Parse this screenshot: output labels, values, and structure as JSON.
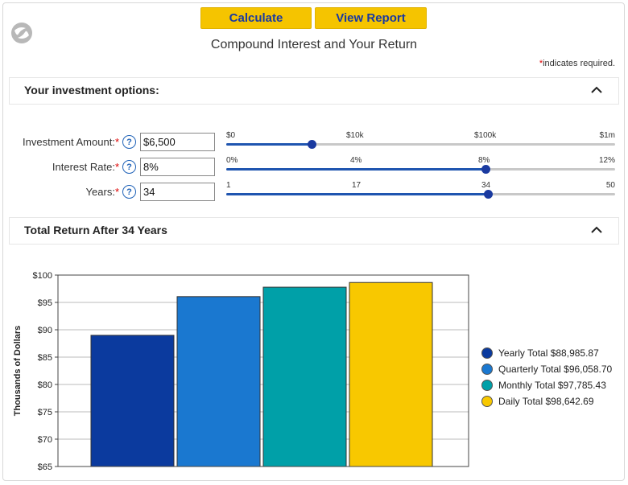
{
  "buttons": {
    "calculate": "Calculate",
    "view_report": "View Report"
  },
  "title": "Compound Interest and Your Return",
  "required_note": {
    "star": "*",
    "text": "indicates required."
  },
  "sections": {
    "options": "Your investment options:",
    "total": "Total Return After 34 Years"
  },
  "fields": {
    "amount": {
      "label": "Investment Amount:",
      "star": "*",
      "value": "$6,500",
      "help": "?"
    },
    "rate": {
      "label": "Interest Rate:",
      "star": "*",
      "value": "8%",
      "help": "?"
    },
    "years": {
      "label": "Years:",
      "star": "*",
      "value": "34",
      "help": "?"
    }
  },
  "sliders": {
    "amount": {
      "ticks": [
        "$0",
        "$10k",
        "$100k",
        "$1m"
      ],
      "level": 0.22
    },
    "rate": {
      "ticks": [
        "0%",
        "4%",
        "8%",
        "12%"
      ],
      "level": 0.667
    },
    "years": {
      "ticks": [
        "1",
        "17",
        "34",
        "50"
      ],
      "level": 0.673
    }
  },
  "chart_data": {
    "type": "bar",
    "title": "",
    "xlabel": "",
    "ylabel": "Thousands of Dollars",
    "ylim": [
      65,
      100
    ],
    "yticks": [
      65,
      70,
      75,
      80,
      85,
      90,
      95,
      100
    ],
    "ytick_labels": [
      "$65",
      "$70",
      "$75",
      "$80",
      "$85",
      "$90",
      "$95",
      "$100"
    ],
    "categories": [
      "Yearly",
      "Quarterly",
      "Monthly",
      "Daily"
    ],
    "values": [
      88.98587,
      96.0587,
      97.78543,
      98.64269
    ],
    "colors": [
      "#0b3a9e",
      "#1a78d0",
      "#00a0a8",
      "#f8c800"
    ],
    "legend": [
      "Yearly Total $88,985.87",
      "Quarterly Total $96,058.70",
      "Monthly Total $97,785.43",
      "Daily Total $98,642.69"
    ],
    "legend_position": "right",
    "grid": true
  }
}
